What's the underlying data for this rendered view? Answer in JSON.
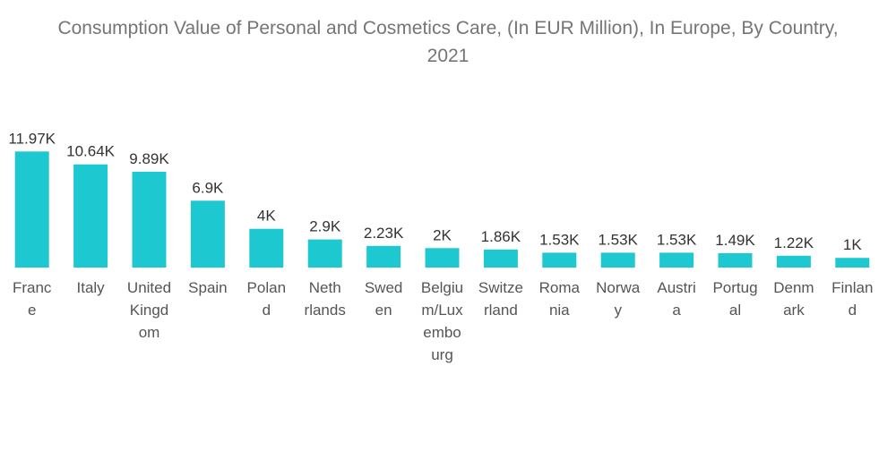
{
  "chart_data": {
    "type": "bar",
    "title": "Consumption Value of Personal and Cosmetics Care, (In EUR Million), In Europe, By Country, 2021",
    "xlabel": "",
    "ylabel": "",
    "ylim": [
      0,
      12000
    ],
    "grid": false,
    "bar_color": "#1ec8d0",
    "categories": [
      "France",
      "Italy",
      "United Kingdom",
      "Spain",
      "Poland",
      "Netherlands",
      "Sweden",
      "Belgium/Luxembourg",
      "Switzerland",
      "Romania",
      "Norway",
      "Austria",
      "Portugal",
      "Denmark",
      "Finland"
    ],
    "category_label_lines": [
      [
        "Franc",
        "e"
      ],
      [
        "Italy"
      ],
      [
        "United",
        "Kingd",
        "om"
      ],
      [
        "Spain"
      ],
      [
        "Polan",
        "d"
      ],
      [
        "Neth",
        "rlands"
      ],
      [
        "Swed",
        "en"
      ],
      [
        "Belgiu",
        "m/Lux",
        "embo",
        "urg"
      ],
      [
        "Switze",
        "rland"
      ],
      [
        "Roma",
        "nia"
      ],
      [
        "Norwa",
        "y"
      ],
      [
        "Austri",
        "a"
      ],
      [
        "Portug",
        "al"
      ],
      [
        "Denm",
        "ark"
      ],
      [
        "Finlan",
        "d"
      ]
    ],
    "values": [
      11970,
      10640,
      9890,
      6900,
      4000,
      2900,
      2230,
      2000,
      1860,
      1530,
      1530,
      1530,
      1490,
      1220,
      1000
    ],
    "value_labels": [
      "11.97K",
      "10.64K",
      "9.89K",
      "6.9K",
      "4K",
      "2.9K",
      "2.23K",
      "2K",
      "1.86K",
      "1.53K",
      "1.53K",
      "1.53K",
      "1.49K",
      "1.22K",
      "1K"
    ]
  }
}
